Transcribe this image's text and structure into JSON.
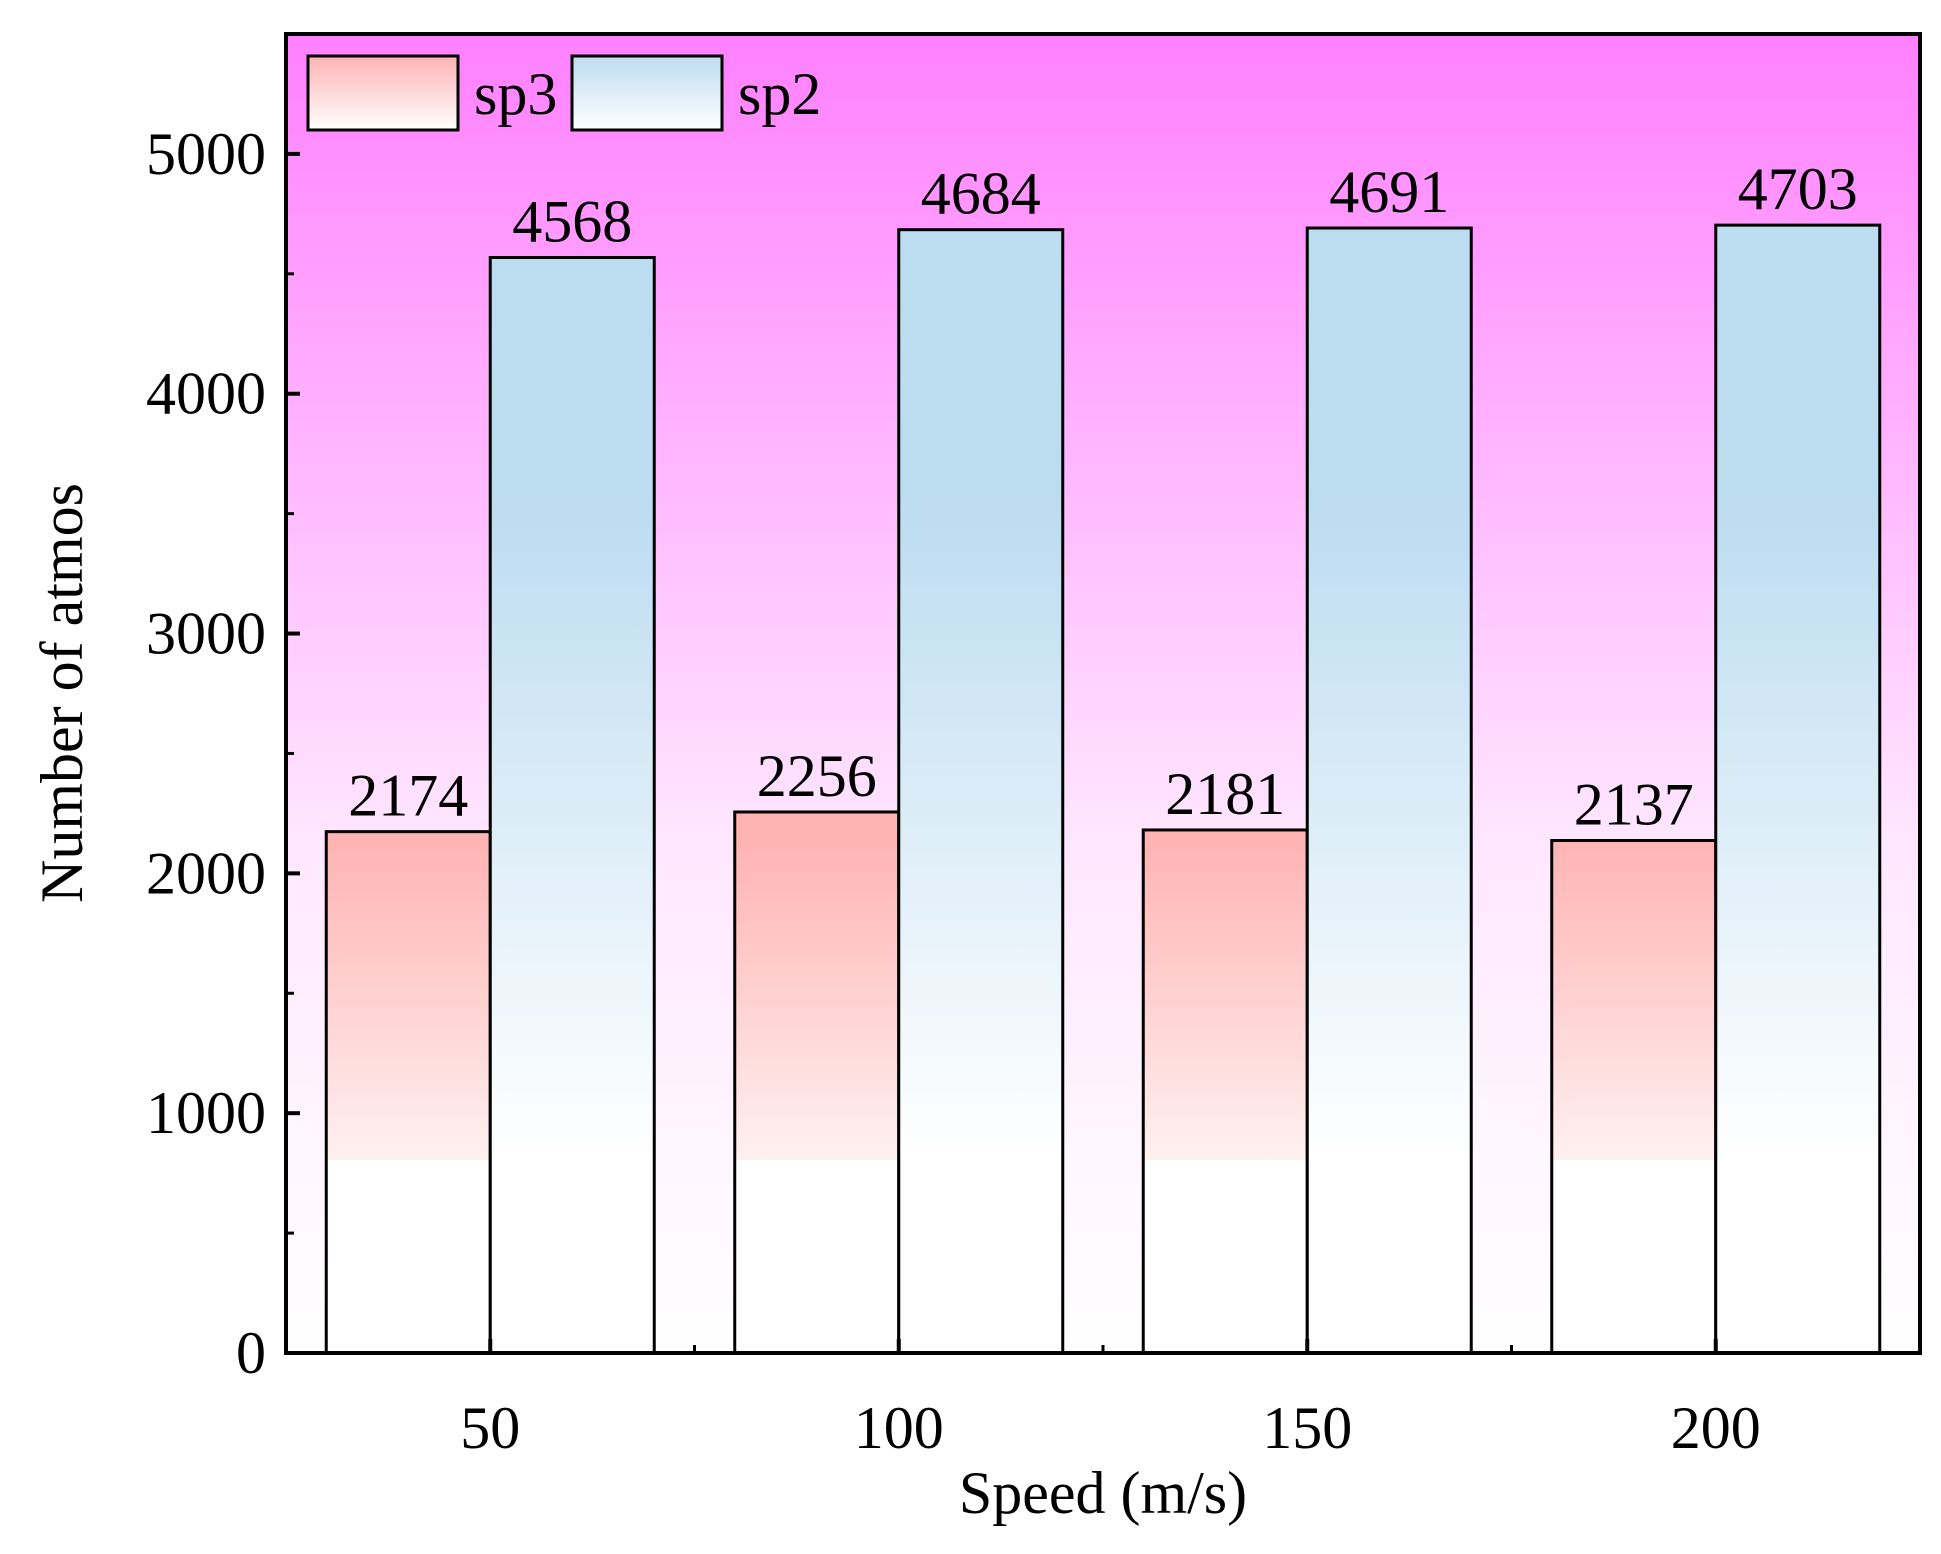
{
  "chart_data": {
    "type": "bar",
    "title": "",
    "xlabel": "Speed (m/s)",
    "ylabel": "Number of atmos",
    "categories": [
      "50",
      "100",
      "150",
      "200"
    ],
    "series": [
      {
        "name": "sp3",
        "values": [
          2174,
          2256,
          2181,
          2137
        ]
      },
      {
        "name": "sp2",
        "values": [
          4568,
          4684,
          4691,
          4703
        ]
      }
    ],
    "ylim": [
      0,
      5500
    ],
    "yticks": [
      0,
      1000,
      2000,
      3000,
      4000,
      5000
    ],
    "ytick_labels": [
      "0",
      "1000",
      "2000",
      "3000",
      "4000",
      "5000"
    ],
    "grid": false,
    "legend_position": "top-left",
    "colors": {
      "plot_background_top": "#ff80ff",
      "plot_background_bottom": "#ffffff",
      "sp3_fill_top": "#ffb3b3",
      "sp3_fill_bottom": "#fff0f0",
      "sp2_fill_top": "#bcdcf0",
      "sp2_fill_bottom": "#ffffff",
      "axis": "#000000"
    }
  }
}
